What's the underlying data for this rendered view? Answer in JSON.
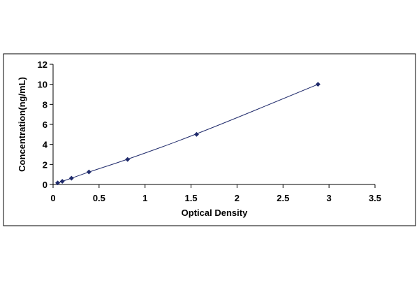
{
  "chart_data": {
    "type": "scatter",
    "title": "",
    "xlabel": "Optical Density",
    "ylabel": "Concentration(ng/mL)",
    "xlim": [
      0,
      3.5
    ],
    "ylim": [
      0,
      12
    ],
    "x_ticks": [
      0,
      0.5,
      1,
      1.5,
      2,
      2.5,
      3,
      3.5
    ],
    "x_tick_labels": [
      "0",
      "0.5",
      "1",
      "1.5",
      "2",
      "2.5",
      "3",
      "3.5"
    ],
    "y_ticks": [
      0,
      2,
      4,
      6,
      8,
      10,
      12
    ],
    "y_tick_labels": [
      "0",
      "2",
      "4",
      "6",
      "8",
      "10",
      "12"
    ],
    "grid": false,
    "legend": "none",
    "trendline": true,
    "marker": "diamond",
    "series": [
      {
        "x": [
          0.05,
          0.1,
          0.2,
          0.39,
          0.81,
          1.56,
          2.88
        ],
        "y": [
          0.156,
          0.313,
          0.625,
          1.25,
          2.5,
          5,
          10
        ]
      }
    ],
    "colors": {
      "marker": "#1f2a6b",
      "line": "#1f2a6b",
      "frame": "#000000"
    }
  }
}
